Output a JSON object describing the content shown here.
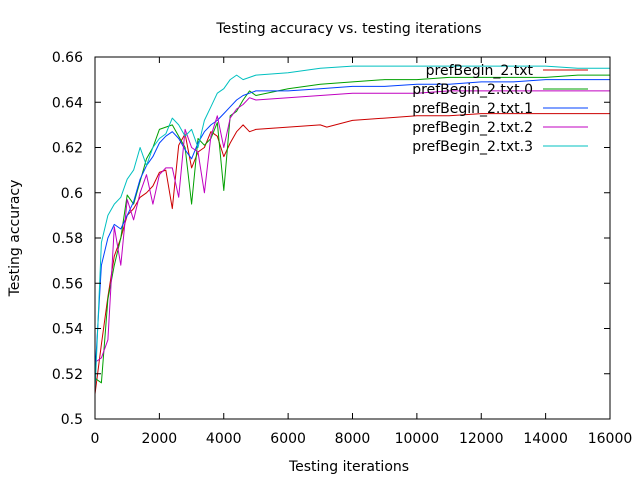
{
  "chart_data": {
    "type": "line",
    "title": "Testing accuracy vs. testing iterations",
    "xlabel": "Testing iterations",
    "ylabel": "Testing accuracy",
    "xlim": [
      0,
      16000
    ],
    "ylim": [
      0.5,
      0.66
    ],
    "x_ticks": [
      "0",
      "2000",
      "4000",
      "6000",
      "8000",
      "10000",
      "12000",
      "14000",
      "16000"
    ],
    "y_ticks": [
      "0.5",
      "0.52",
      "0.54",
      "0.56",
      "0.58",
      "0.6",
      "0.62",
      "0.64",
      "0.66"
    ],
    "grid": false,
    "legend_position": "top-right",
    "series": [
      {
        "name": "prefBegin_2.txt",
        "color": "#cc0000",
        "x": [
          0,
          200,
          400,
          600,
          800,
          1000,
          1200,
          1400,
          1600,
          1800,
          2000,
          2200,
          2400,
          2600,
          2800,
          3000,
          3200,
          3400,
          3600,
          3800,
          4000,
          4200,
          4400,
          4600,
          4800,
          5000,
          6000,
          7000,
          7200,
          8000,
          9000,
          10000,
          11000,
          12000,
          13000,
          14000,
          15000,
          16000
        ],
        "y": [
          0.511,
          0.533,
          0.554,
          0.572,
          0.58,
          0.59,
          0.593,
          0.598,
          0.6,
          0.603,
          0.609,
          0.61,
          0.593,
          0.621,
          0.626,
          0.611,
          0.618,
          0.62,
          0.627,
          0.625,
          0.616,
          0.622,
          0.627,
          0.63,
          0.627,
          0.628,
          0.629,
          0.63,
          0.629,
          0.632,
          0.633,
          0.634,
          0.634,
          0.635,
          0.635,
          0.635,
          0.635,
          0.635
        ]
      },
      {
        "name": "prefBegin_2.txt.0",
        "color": "#00a000",
        "x": [
          0,
          200,
          400,
          600,
          800,
          1000,
          1200,
          1400,
          1600,
          1800,
          2000,
          2200,
          2400,
          2600,
          2800,
          3000,
          3200,
          3400,
          3600,
          3800,
          4000,
          4200,
          4400,
          4600,
          4800,
          5000,
          6000,
          7000,
          8000,
          9000,
          10000,
          11000,
          12000,
          13000,
          14000,
          15000,
          16000
        ],
        "y": [
          0.518,
          0.516,
          0.553,
          0.568,
          0.58,
          0.599,
          0.595,
          0.605,
          0.615,
          0.62,
          0.628,
          0.629,
          0.63,
          0.625,
          0.62,
          0.595,
          0.624,
          0.621,
          0.624,
          0.631,
          0.601,
          0.634,
          0.636,
          0.641,
          0.645,
          0.643,
          0.646,
          0.648,
          0.649,
          0.65,
          0.65,
          0.651,
          0.651,
          0.651,
          0.651,
          0.652,
          0.652
        ]
      },
      {
        "name": "prefBegin_2.txt.1",
        "color": "#0040ff",
        "x": [
          0,
          200,
          400,
          600,
          800,
          1000,
          1200,
          1400,
          1600,
          1800,
          2000,
          2200,
          2400,
          2600,
          2800,
          3000,
          3200,
          3400,
          3600,
          3800,
          4000,
          4200,
          4400,
          4600,
          4800,
          5000,
          6000,
          7000,
          8000,
          9000,
          10000,
          11000,
          12000,
          13000,
          14000,
          15000,
          16000
        ],
        "y": [
          0.52,
          0.568,
          0.58,
          0.586,
          0.584,
          0.59,
          0.596,
          0.606,
          0.612,
          0.616,
          0.622,
          0.625,
          0.627,
          0.624,
          0.619,
          0.615,
          0.622,
          0.627,
          0.63,
          0.632,
          0.635,
          0.638,
          0.641,
          0.643,
          0.644,
          0.645,
          0.645,
          0.646,
          0.647,
          0.647,
          0.648,
          0.648,
          0.649,
          0.649,
          0.65,
          0.65,
          0.65
        ]
      },
      {
        "name": "prefBegin_2.txt.2",
        "color": "#c000c0",
        "x": [
          0,
          200,
          400,
          600,
          800,
          1000,
          1200,
          1400,
          1600,
          1800,
          2000,
          2200,
          2400,
          2600,
          2800,
          3000,
          3200,
          3400,
          3600,
          3800,
          4000,
          4200,
          4400,
          4600,
          4800,
          5000,
          6000,
          7000,
          8000,
          9000,
          10000,
          11000,
          12000,
          13000,
          14000,
          15000,
          16000
        ],
        "y": [
          0.525,
          0.527,
          0.535,
          0.585,
          0.568,
          0.597,
          0.588,
          0.6,
          0.608,
          0.595,
          0.608,
          0.611,
          0.611,
          0.598,
          0.628,
          0.62,
          0.618,
          0.6,
          0.625,
          0.634,
          0.62,
          0.633,
          0.637,
          0.639,
          0.642,
          0.641,
          0.642,
          0.643,
          0.644,
          0.644,
          0.644,
          0.645,
          0.645,
          0.645,
          0.645,
          0.645,
          0.645
        ]
      },
      {
        "name": "prefBegin_2.txt.3",
        "color": "#00c0c0",
        "x": [
          0,
          200,
          400,
          600,
          800,
          1000,
          1200,
          1400,
          1600,
          1800,
          2000,
          2200,
          2400,
          2600,
          2800,
          3000,
          3200,
          3400,
          3600,
          3800,
          4000,
          4200,
          4400,
          4600,
          4800,
          5000,
          6000,
          7000,
          8000,
          9000,
          10000,
          11000,
          12000,
          13000,
          14000,
          15000,
          16000
        ],
        "y": [
          0.512,
          0.578,
          0.59,
          0.595,
          0.598,
          0.606,
          0.61,
          0.62,
          0.612,
          0.62,
          0.624,
          0.626,
          0.633,
          0.63,
          0.625,
          0.628,
          0.62,
          0.632,
          0.638,
          0.644,
          0.646,
          0.65,
          0.652,
          0.65,
          0.651,
          0.652,
          0.653,
          0.655,
          0.656,
          0.656,
          0.656,
          0.656,
          0.656,
          0.656,
          0.656,
          0.655,
          0.655
        ]
      }
    ]
  }
}
